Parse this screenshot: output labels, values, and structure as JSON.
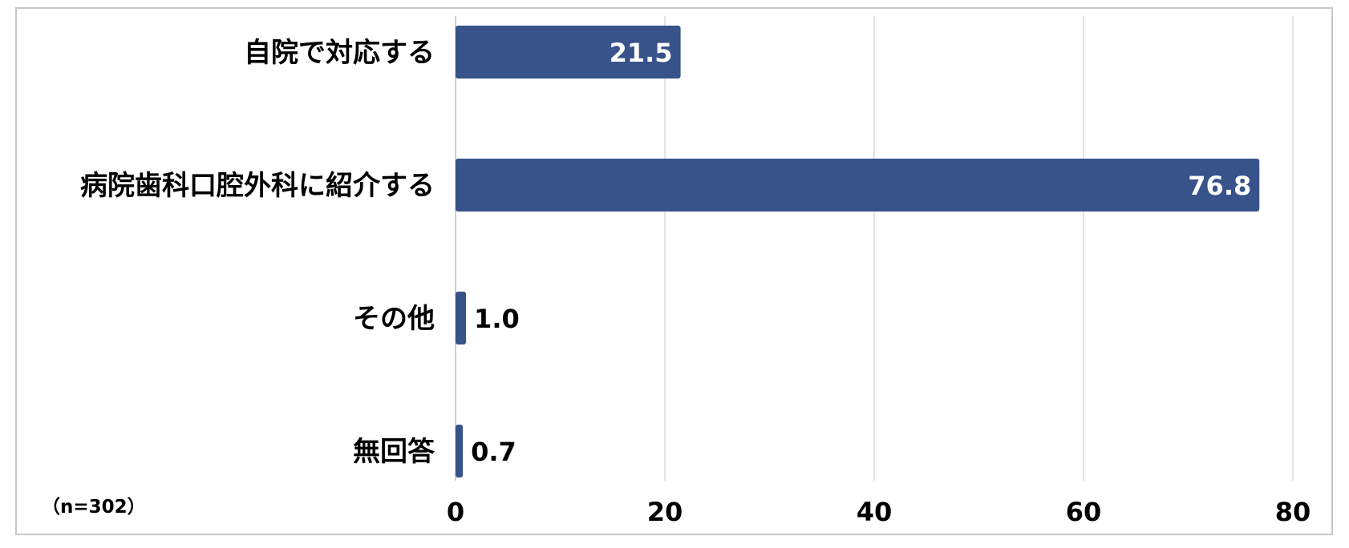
{
  "sample_note": "（n=302）",
  "chart_data": {
    "type": "bar",
    "orientation": "horizontal",
    "categories": [
      "自院で対応する",
      "病院歯科口腔外科に紹介する",
      "その他",
      "無回答"
    ],
    "values": [
      21.5,
      76.8,
      1.0,
      0.7
    ],
    "value_labels": [
      "21.5",
      "76.8",
      "1.0",
      "0.7"
    ],
    "xlim": [
      0,
      80
    ],
    "xticks": [
      0,
      20,
      40,
      60,
      80
    ],
    "xtick_labels": [
      "0",
      "20",
      "40",
      "60",
      "80"
    ],
    "grid": "vertical",
    "legend": "none",
    "bar_color": "#38528a",
    "grid_color": "#d9d9d9"
  }
}
